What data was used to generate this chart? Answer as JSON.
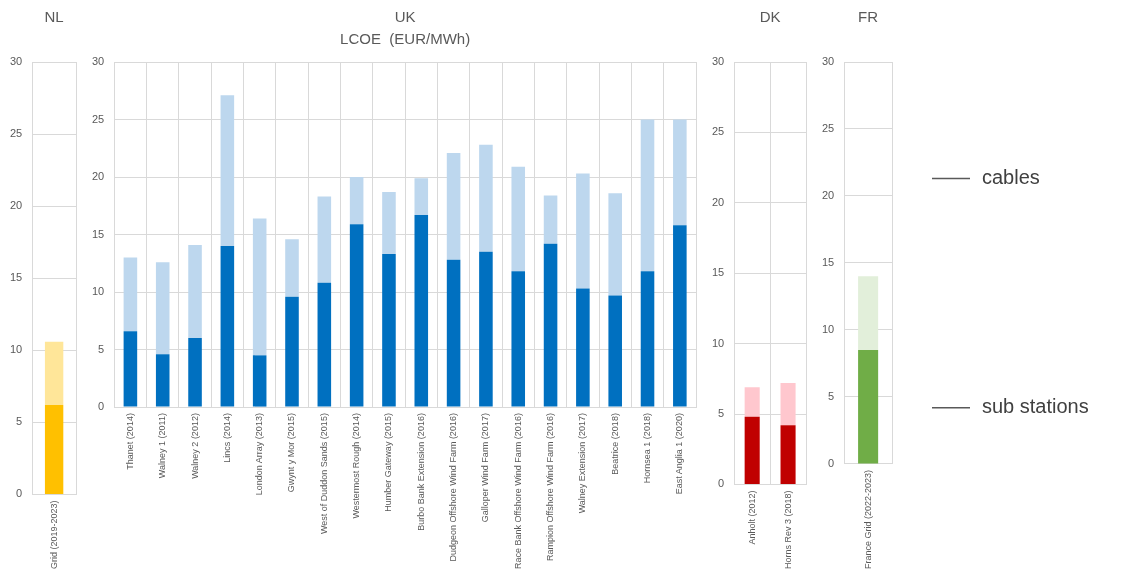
{
  "chart_data": [
    {
      "type": "bar",
      "title": "NL",
      "stacked": true,
      "grid": true,
      "categories": [
        "Grid (2019-2023)"
      ],
      "ylim": [
        0,
        30
      ],
      "yticks": [
        0,
        5,
        10,
        15,
        20,
        25,
        30
      ],
      "series": [
        {
          "color": "#ffc000",
          "values": [
            6.2
          ]
        },
        {
          "color": "#ffe699",
          "values": [
            4.4
          ]
        }
      ]
    },
    {
      "type": "bar",
      "title": "UK",
      "subtitle": "LCOE  (EUR/MWh)",
      "stacked": true,
      "grid": true,
      "categories": [
        "Thanet (2014)",
        "Walney 1 (2011)",
        "Walney 2 (2012)",
        "Lincs (2014)",
        "London Array (2013)",
        "Gwynt y Mor (2015)",
        "West of Duddon Sands (2015)",
        "Westermost Rough (2014)",
        "Humber Gateway (2015)",
        "Burbo Bank Extension (2016)",
        "Dudgeon Offshore Wind Farm (2016)",
        "Galloper Wind Farm (2017)",
        "Race Bank Offshore Wind Farm (2016)",
        "Rampion Offshore Wind Farm (2016)",
        "Walney Extension (2017)",
        "Beatrice (2018)",
        "Hornsea 1 (2018)",
        "East Anglia 1 (2020)"
      ],
      "ylim": [
        0,
        30
      ],
      "yticks": [
        0,
        5,
        10,
        15,
        20,
        25,
        30
      ],
      "series": [
        {
          "color": "#0070c0",
          "values": [
            6.6,
            4.6,
            6.0,
            14.0,
            4.5,
            9.6,
            10.8,
            15.9,
            13.3,
            16.7,
            12.8,
            13.5,
            11.8,
            14.2,
            10.3,
            9.7,
            11.8,
            15.8
          ]
        },
        {
          "color": "#bdd7ee",
          "values": [
            6.4,
            8.0,
            8.1,
            13.1,
            11.9,
            5.0,
            7.5,
            4.1,
            5.4,
            3.2,
            9.3,
            9.3,
            9.1,
            4.2,
            10.0,
            8.9,
            13.2,
            9.2
          ]
        }
      ]
    },
    {
      "type": "bar",
      "title": "DK",
      "stacked": true,
      "grid": true,
      "categories": [
        "Anholt (2012)",
        "Horns Rev 3 (2018)"
      ],
      "ylim": [
        0,
        30
      ],
      "yticks": [
        0,
        5,
        10,
        15,
        20,
        25,
        30
      ],
      "series": [
        {
          "color": "#c00000",
          "values": [
            4.8,
            4.2
          ]
        },
        {
          "color": "#ffc7ce",
          "values": [
            2.1,
            3.0
          ]
        }
      ]
    },
    {
      "type": "bar",
      "title": "FR",
      "stacked": true,
      "grid": true,
      "legend": "right",
      "categories": [
        "France Grid (2022-2023)"
      ],
      "ylim": [
        0,
        30
      ],
      "yticks": [
        0,
        5,
        10,
        15,
        20,
        25,
        30
      ],
      "series": [
        {
          "name": "sub stations",
          "color": "#70ad47",
          "values": [
            8.5
          ]
        },
        {
          "name": "cables",
          "color": "#e2efda",
          "values": [
            5.5
          ]
        }
      ]
    }
  ]
}
